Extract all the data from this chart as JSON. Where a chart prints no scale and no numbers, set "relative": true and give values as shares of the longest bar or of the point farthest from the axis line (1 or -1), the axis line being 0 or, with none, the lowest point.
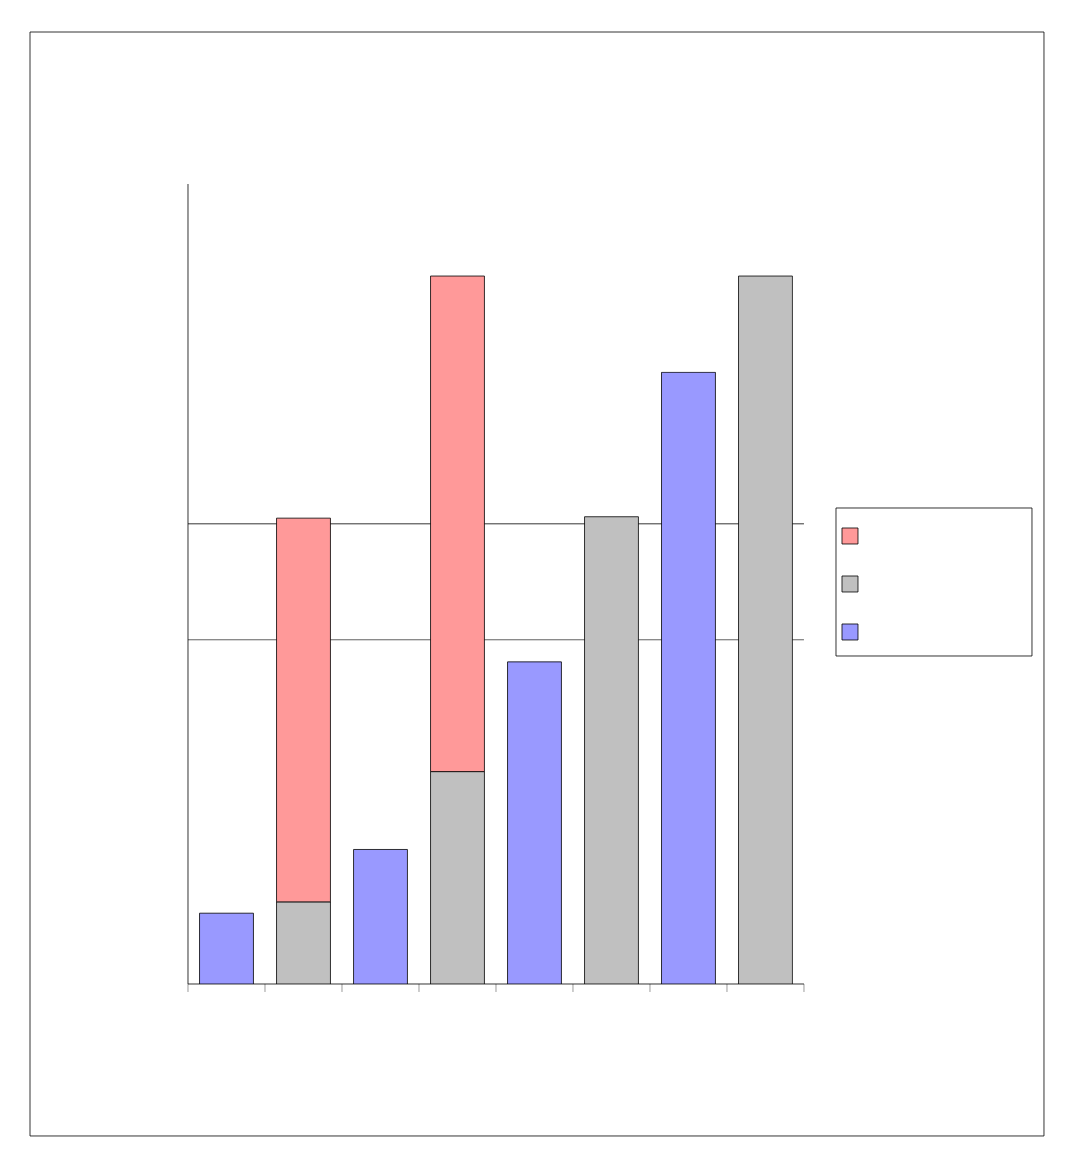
{
  "chart_data": {
    "type": "bar",
    "relative": true,
    "stacked": true,
    "categories": [
      null,
      null,
      null,
      null,
      null,
      null,
      null,
      null
    ],
    "series": [
      {
        "color": "#9999ff",
        "values": [
          0.1,
          null,
          0.19,
          null,
          0.455,
          null,
          0.864,
          null
        ]
      },
      {
        "color": "#c0c0c0",
        "values": [
          null,
          0.116,
          null,
          0.3,
          null,
          0.66,
          null,
          1.0
        ]
      },
      {
        "color": "#ff9999",
        "values": [
          null,
          0.542,
          null,
          0.7,
          null,
          null,
          null,
          null
        ]
      }
    ],
    "ref_lines": [
      {
        "axis": "y",
        "value": 0.486
      },
      {
        "axis": "y",
        "value": 0.65
      }
    ]
  }
}
